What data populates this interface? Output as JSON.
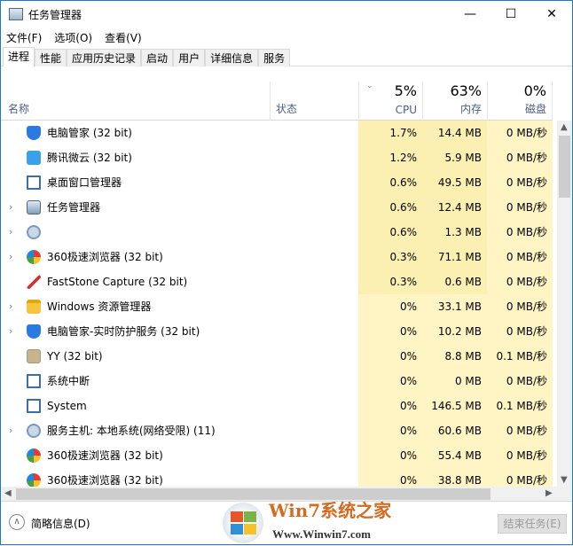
{
  "window": {
    "title": "任务管理器",
    "minimize": "—",
    "maximize": "☐",
    "close": "✕"
  },
  "menu": [
    "文件(F)",
    "选项(O)",
    "查看(V)"
  ],
  "tabs": [
    "进程",
    "性能",
    "应用历史记录",
    "启动",
    "用户",
    "详细信息",
    "服务"
  ],
  "header": {
    "name": "名称",
    "status": "状态",
    "cpu_pct": "5%",
    "cpu": "CPU",
    "mem_pct": "63%",
    "mem": "内存",
    "disk_pct": "0%",
    "disk": "磁盘"
  },
  "colors": {
    "cpu_high": "#fcefb2",
    "cell": "#fff4c4",
    "selected_border": "#1979ca"
  },
  "rows": [
    {
      "expand": "",
      "icon": "shield-icon",
      "name": "电脑管家 (32 bit)",
      "cpu": "1.7%",
      "mem": "14.4 MB",
      "disk": "0 MB/秒"
    },
    {
      "expand": "",
      "icon": "cloud-icon",
      "name": "腾讯微云 (32 bit)",
      "cpu": "1.2%",
      "mem": "5.9 MB",
      "disk": "0 MB/秒"
    },
    {
      "expand": "",
      "icon": "window-icon",
      "name": "桌面窗口管理器",
      "cpu": "0.6%",
      "mem": "49.5 MB",
      "disk": "0 MB/秒"
    },
    {
      "expand": "›",
      "icon": "taskmgr-icon",
      "name": "任务管理器",
      "cpu": "0.6%",
      "mem": "12.4 MB",
      "disk": "0 MB/秒"
    },
    {
      "expand": "›",
      "icon": "gear-icon",
      "name": "",
      "cpu": "0.6%",
      "mem": "1.3 MB",
      "disk": "0 MB/秒"
    },
    {
      "expand": "›",
      "icon": "browser-360-icon",
      "name": "360极速浏览器 (32 bit)",
      "cpu": "0.3%",
      "mem": "71.1 MB",
      "disk": "0 MB/秒"
    },
    {
      "expand": "",
      "icon": "faststone-icon",
      "name": "FastStone Capture (32 bit)",
      "cpu": "0.3%",
      "mem": "0.6 MB",
      "disk": "0 MB/秒"
    },
    {
      "expand": "›",
      "icon": "folder-icon",
      "name": "Windows 资源管理器",
      "cpu": "0%",
      "mem": "33.1 MB",
      "disk": "0 MB/秒"
    },
    {
      "expand": "›",
      "icon": "shield-icon",
      "name": "电脑管家-实时防护服务 (32 bit)",
      "cpu": "0%",
      "mem": "10.2 MB",
      "disk": "0 MB/秒"
    },
    {
      "expand": "",
      "icon": "yy-icon",
      "name": "YY (32 bit)",
      "cpu": "0%",
      "mem": "8.8 MB",
      "disk": "0.1 MB/秒"
    },
    {
      "expand": "",
      "icon": "window-icon",
      "name": "系统中断",
      "cpu": "0%",
      "mem": "0 MB",
      "disk": "0 MB/秒"
    },
    {
      "expand": "",
      "icon": "window-icon",
      "name": "System",
      "cpu": "0%",
      "mem": "146.5 MB",
      "disk": "0.1 MB/秒"
    },
    {
      "expand": "›",
      "icon": "gear-icon",
      "name": "服务主机: 本地系统(网络受限) (11)",
      "cpu": "0%",
      "mem": "60.6 MB",
      "disk": "0 MB/秒"
    },
    {
      "expand": "",
      "icon": "browser-360-icon",
      "name": "360极速浏览器 (32 bit)",
      "cpu": "0%",
      "mem": "55.4 MB",
      "disk": "0 MB/秒"
    },
    {
      "expand": "",
      "icon": "browser-360-icon",
      "name": "360极速浏览器 (32 bit)",
      "cpu": "0%",
      "mem": "38.8 MB",
      "disk": "0 MB/秒"
    }
  ],
  "footer": {
    "fewer_details": "简略信息(D)",
    "end_task": "结束任务(E)"
  },
  "watermark": {
    "brand": "Win7系统之家",
    "url": "Www.Winwin7.com"
  }
}
